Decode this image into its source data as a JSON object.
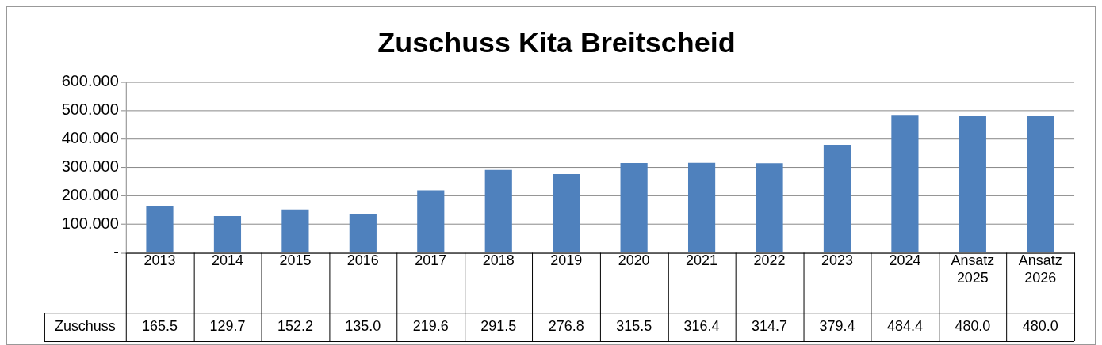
{
  "chart_data": {
    "type": "bar",
    "title": "Zuschuss Kita Breitscheid",
    "categories": [
      "2013",
      "2014",
      "2015",
      "2016",
      "2017",
      "2018",
      "2019",
      "2020",
      "2021",
      "2022",
      "2023",
      "2024",
      "Ansatz 2025",
      "Ansatz 2026"
    ],
    "series": [
      {
        "name": "Zuschuss",
        "color": "#4f81bd",
        "values": [
          165.5,
          129.7,
          152.2,
          135.0,
          219.6,
          291.5,
          276.8,
          315.5,
          316.4,
          314.7,
          379.4,
          484.4,
          480.0,
          480.0
        ],
        "value_labels": [
          "165.5",
          "129.7",
          "152.2",
          "135.0",
          "219.6",
          "291.5",
          "276.8",
          "315.5",
          "316.4",
          "314.7",
          "379.4",
          "484.4",
          "480.0",
          "480.0"
        ]
      }
    ],
    "ylim": [
      0,
      600
    ],
    "yticks": [
      {
        "value": 0,
        "label": "-"
      },
      {
        "value": 100,
        "label": "100.000"
      },
      {
        "value": 200,
        "label": "200.000"
      },
      {
        "value": 300,
        "label": "300.000"
      },
      {
        "value": 400,
        "label": "400.000"
      },
      {
        "value": 500,
        "label": "500.000"
      },
      {
        "value": 600,
        "label": "600.000"
      }
    ],
    "grid": "y",
    "legend": false
  }
}
